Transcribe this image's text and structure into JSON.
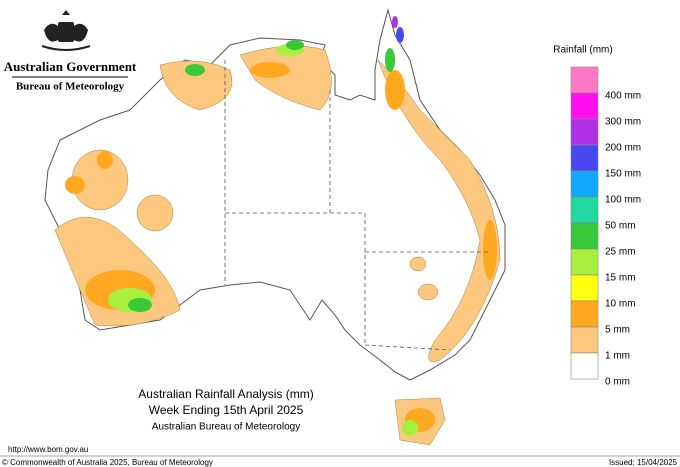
{
  "header": {
    "agency": "Australian Government",
    "bureau": "Bureau of Meteorology"
  },
  "legend": {
    "title": "Rainfall (mm)",
    "items": [
      {
        "label": "400 mm",
        "color": "#ff78c8"
      },
      {
        "label": "300 mm",
        "color": "#ff10f0"
      },
      {
        "label": "200 mm",
        "color": "#b030e8"
      },
      {
        "label": "150 mm",
        "color": "#4848f0"
      },
      {
        "label": "100 mm",
        "color": "#10a8f8"
      },
      {
        "label": "50 mm",
        "color": "#20d8a0"
      },
      {
        "label": "25 mm",
        "color": "#38c838"
      },
      {
        "label": "15 mm",
        "color": "#a8f040"
      },
      {
        "label": "10 mm",
        "color": "#ffff10"
      },
      {
        "label": "5 mm",
        "color": "#ffa820"
      },
      {
        "label": "1 mm",
        "color": "#fcc880"
      },
      {
        "label": "0 mm",
        "color": "#ffffff"
      }
    ]
  },
  "map_title": {
    "lines": [
      "Australian Rainfall Analysis (mm)",
      "Week Ending 15th April 2025",
      "Australian Bureau of Meteorology"
    ]
  },
  "footer": {
    "url": "http://www.bom.gov.au",
    "copyright": "© Commonwealth of Australia 2025, Bureau of Meteorology",
    "issued": "Issued: 15/04/2025"
  }
}
